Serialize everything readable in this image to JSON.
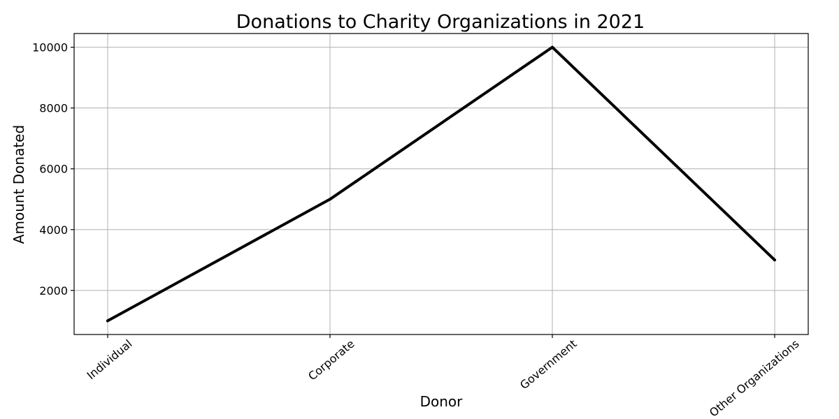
{
  "chart_data": {
    "type": "line",
    "title": "Donations to Charity Organizations in 2021",
    "xlabel": "Donor",
    "ylabel": "Amount Donated",
    "categories": [
      "Individual",
      "Corporate",
      "Government",
      "Other Organizations"
    ],
    "values": [
      1000,
      5000,
      10000,
      3000
    ],
    "ylim": [
      550,
      10450
    ],
    "yticks": [
      2000,
      4000,
      6000,
      8000,
      10000
    ],
    "grid": true,
    "legend": "none",
    "line_color": "#000000"
  }
}
